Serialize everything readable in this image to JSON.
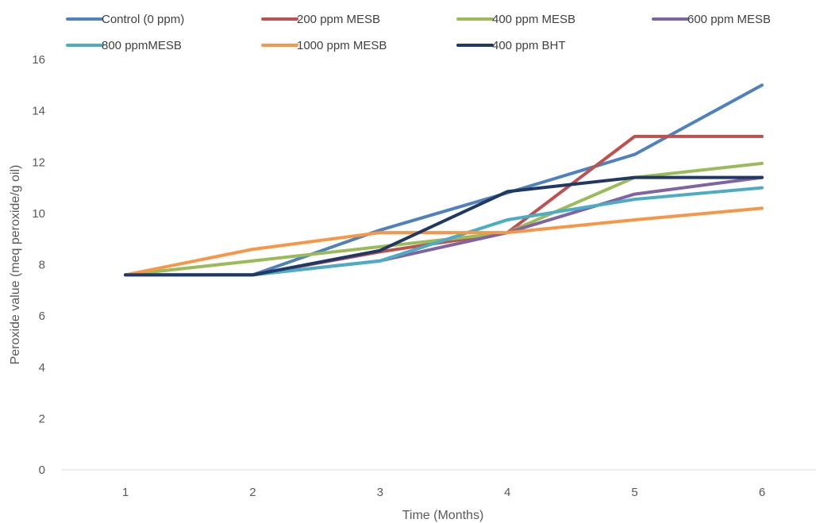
{
  "chart_data": {
    "type": "line",
    "title": "",
    "xlabel": "Time (Months)",
    "ylabel": "Peroxide value (meq peroxide/g oil)",
    "categories": [
      "1",
      "2",
      "3",
      "4",
      "5",
      "6"
    ],
    "ylim": [
      0,
      16
    ],
    "yticks": [
      "0",
      "2",
      "4",
      "6",
      "8",
      "10",
      "12",
      "14",
      "16"
    ],
    "grid": false,
    "legend_position": "top",
    "series": [
      {
        "name": "Control (0 ppm)",
        "color": "#4F81BD",
        "values": [
          7.6,
          7.6,
          9.35,
          10.8,
          12.3,
          15.0
        ]
      },
      {
        "name": "200 ppm MESB",
        "color": "#C0504D",
        "values": [
          7.6,
          7.6,
          8.5,
          9.25,
          13.0,
          13.0
        ]
      },
      {
        "name": "400 ppm MESB",
        "color": "#9BBB59",
        "values": [
          7.6,
          8.15,
          8.7,
          9.25,
          11.4,
          11.95
        ]
      },
      {
        "name": "600 ppm MESB",
        "color": "#8064A2",
        "values": [
          7.6,
          7.6,
          8.15,
          9.25,
          10.75,
          11.4
        ]
      },
      {
        "name": "800 ppmMESB",
        "color": "#4BACC6",
        "values": [
          7.6,
          7.6,
          8.15,
          9.75,
          10.55,
          11.0
        ]
      },
      {
        "name": "1000 ppm MESB",
        "color": "#F79646",
        "values": [
          7.6,
          8.6,
          9.25,
          9.25,
          9.75,
          10.2
        ]
      },
      {
        "name": "400 ppm BHT",
        "color": "#1F3864",
        "values": [
          7.6,
          7.6,
          8.55,
          10.85,
          11.4,
          11.4
        ]
      }
    ]
  }
}
